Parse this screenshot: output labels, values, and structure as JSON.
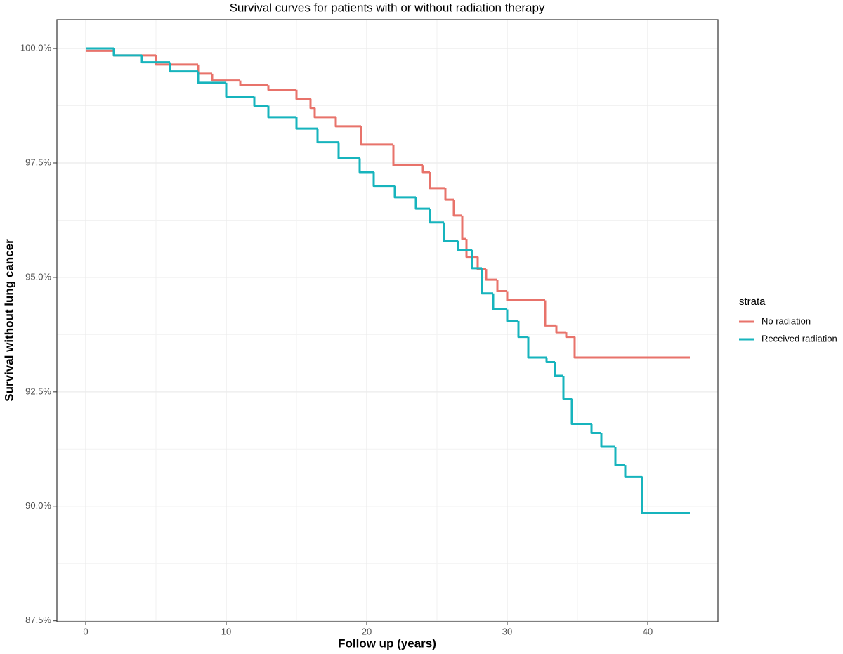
{
  "chart_data": {
    "type": "step",
    "title": "Survival curves for patients with or without radiation therapy",
    "x_label": "Follow up (years)",
    "y_label": "Survival without lung cancer",
    "xlim": [
      -2.05,
      45
    ],
    "xticks": [
      0,
      10,
      20,
      30,
      40
    ],
    "ylim": [
      87.48,
      100.63
    ],
    "yticks": [
      {
        "value": 87.5,
        "label": "87.5%"
      },
      {
        "value": 90,
        "label": "90.0%"
      },
      {
        "value": 92.5,
        "label": "92.5%"
      },
      {
        "value": 95,
        "label": "95.0%"
      },
      {
        "value": 97.5,
        "label": "97.5%"
      },
      {
        "value": 100,
        "label": "100.0%"
      }
    ],
    "grid": true,
    "legend_title": "strata",
    "legend_position": "right",
    "series": [
      {
        "name": "No radiation",
        "color": "#e8736b",
        "x": [
          0,
          2,
          5,
          8,
          9,
          11,
          13,
          15,
          16,
          16.3,
          17.8,
          19.6,
          21.9,
          24,
          24.5,
          25.6,
          26.2,
          26.8,
          27.1,
          27.9,
          28.5,
          29.3,
          30,
          32.7,
          33.5,
          34.2,
          34.8,
          43
        ],
        "values": [
          99.95,
          99.85,
          99.65,
          99.45,
          99.3,
          99.2,
          99.1,
          98.9,
          98.7,
          98.5,
          98.3,
          97.9,
          97.45,
          97.3,
          96.95,
          96.7,
          96.35,
          95.84,
          95.45,
          95.18,
          94.95,
          94.7,
          94.5,
          93.95,
          93.8,
          93.7,
          93.25,
          93.25
        ]
      },
      {
        "name": "Received radiation",
        "color": "#17b4bd",
        "x": [
          0,
          2,
          4,
          6,
          8,
          10,
          12,
          13,
          15,
          16.5,
          18,
          19.5,
          20.5,
          22,
          23.5,
          24.5,
          25.5,
          26.5,
          27.5,
          28.2,
          29,
          30,
          30.8,
          31.5,
          32.8,
          33.4,
          34,
          34.6,
          36,
          36.7,
          37.7,
          38.4,
          39.6,
          43
        ],
        "values": [
          100,
          99.85,
          99.7,
          99.5,
          99.25,
          98.95,
          98.75,
          98.5,
          98.25,
          97.95,
          97.6,
          97.3,
          97.0,
          96.75,
          96.5,
          96.2,
          95.8,
          95.6,
          95.2,
          94.65,
          94.3,
          94.05,
          93.7,
          93.25,
          93.15,
          92.85,
          92.35,
          91.8,
          91.6,
          91.3,
          90.9,
          90.65,
          89.85,
          89.85
        ]
      }
    ]
  }
}
